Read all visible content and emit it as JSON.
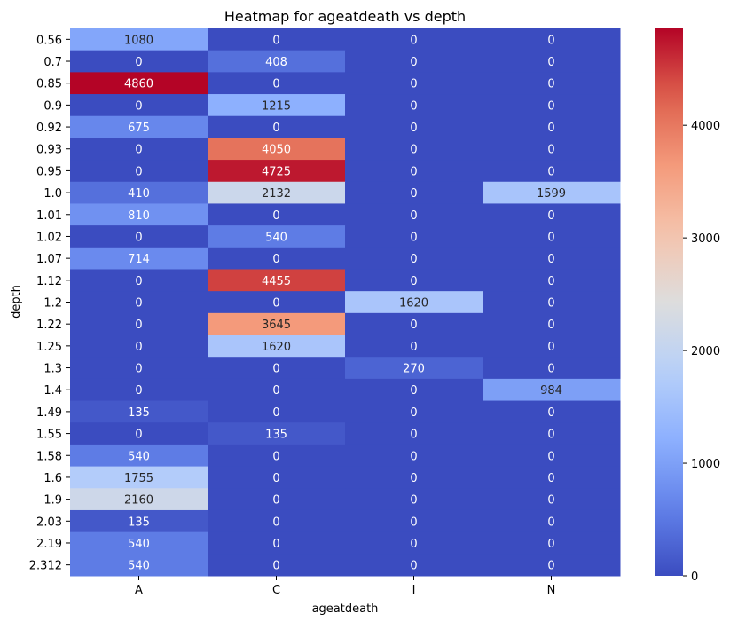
{
  "chart_data": {
    "type": "heatmap",
    "title": "Heatmap for ageatdeath vs depth",
    "xlabel": "ageatdeath",
    "ylabel": "depth",
    "x_categories": [
      "A",
      "C",
      "I",
      "N"
    ],
    "y_categories": [
      "0.56",
      "0.7",
      "0.85",
      "0.9",
      "0.92",
      "0.93",
      "0.95",
      "1.0",
      "1.01",
      "1.02",
      "1.07",
      "1.12",
      "1.2",
      "1.22",
      "1.25",
      "1.3",
      "1.4",
      "1.49",
      "1.55",
      "1.58",
      "1.6",
      "1.9",
      "2.03",
      "2.19",
      "2.312"
    ],
    "values": [
      [
        1080,
        0,
        0,
        0
      ],
      [
        0,
        408,
        0,
        0
      ],
      [
        4860,
        0,
        0,
        0
      ],
      [
        0,
        1215,
        0,
        0
      ],
      [
        675,
        0,
        0,
        0
      ],
      [
        0,
        4050,
        0,
        0
      ],
      [
        0,
        4725,
        0,
        0
      ],
      [
        410,
        2132,
        0,
        1599
      ],
      [
        810,
        0,
        0,
        0
      ],
      [
        0,
        540,
        0,
        0
      ],
      [
        714,
        0,
        0,
        0
      ],
      [
        0,
        4455,
        0,
        0
      ],
      [
        0,
        0,
        1620,
        0
      ],
      [
        0,
        3645,
        0,
        0
      ],
      [
        0,
        1620,
        0,
        0
      ],
      [
        0,
        0,
        270,
        0
      ],
      [
        0,
        0,
        0,
        984
      ],
      [
        135,
        0,
        0,
        0
      ],
      [
        0,
        135,
        0,
        0
      ],
      [
        540,
        0,
        0,
        0
      ],
      [
        1755,
        0,
        0,
        0
      ],
      [
        2160,
        0,
        0,
        0
      ],
      [
        135,
        0,
        0,
        0
      ],
      [
        540,
        0,
        0,
        0
      ],
      [
        540,
        0,
        0,
        0
      ]
    ],
    "colormap": "coolwarm",
    "vmin": 0,
    "vmax": 4860,
    "colorbar_ticks": [
      0,
      1000,
      2000,
      3000,
      4000
    ],
    "annotated": true
  }
}
